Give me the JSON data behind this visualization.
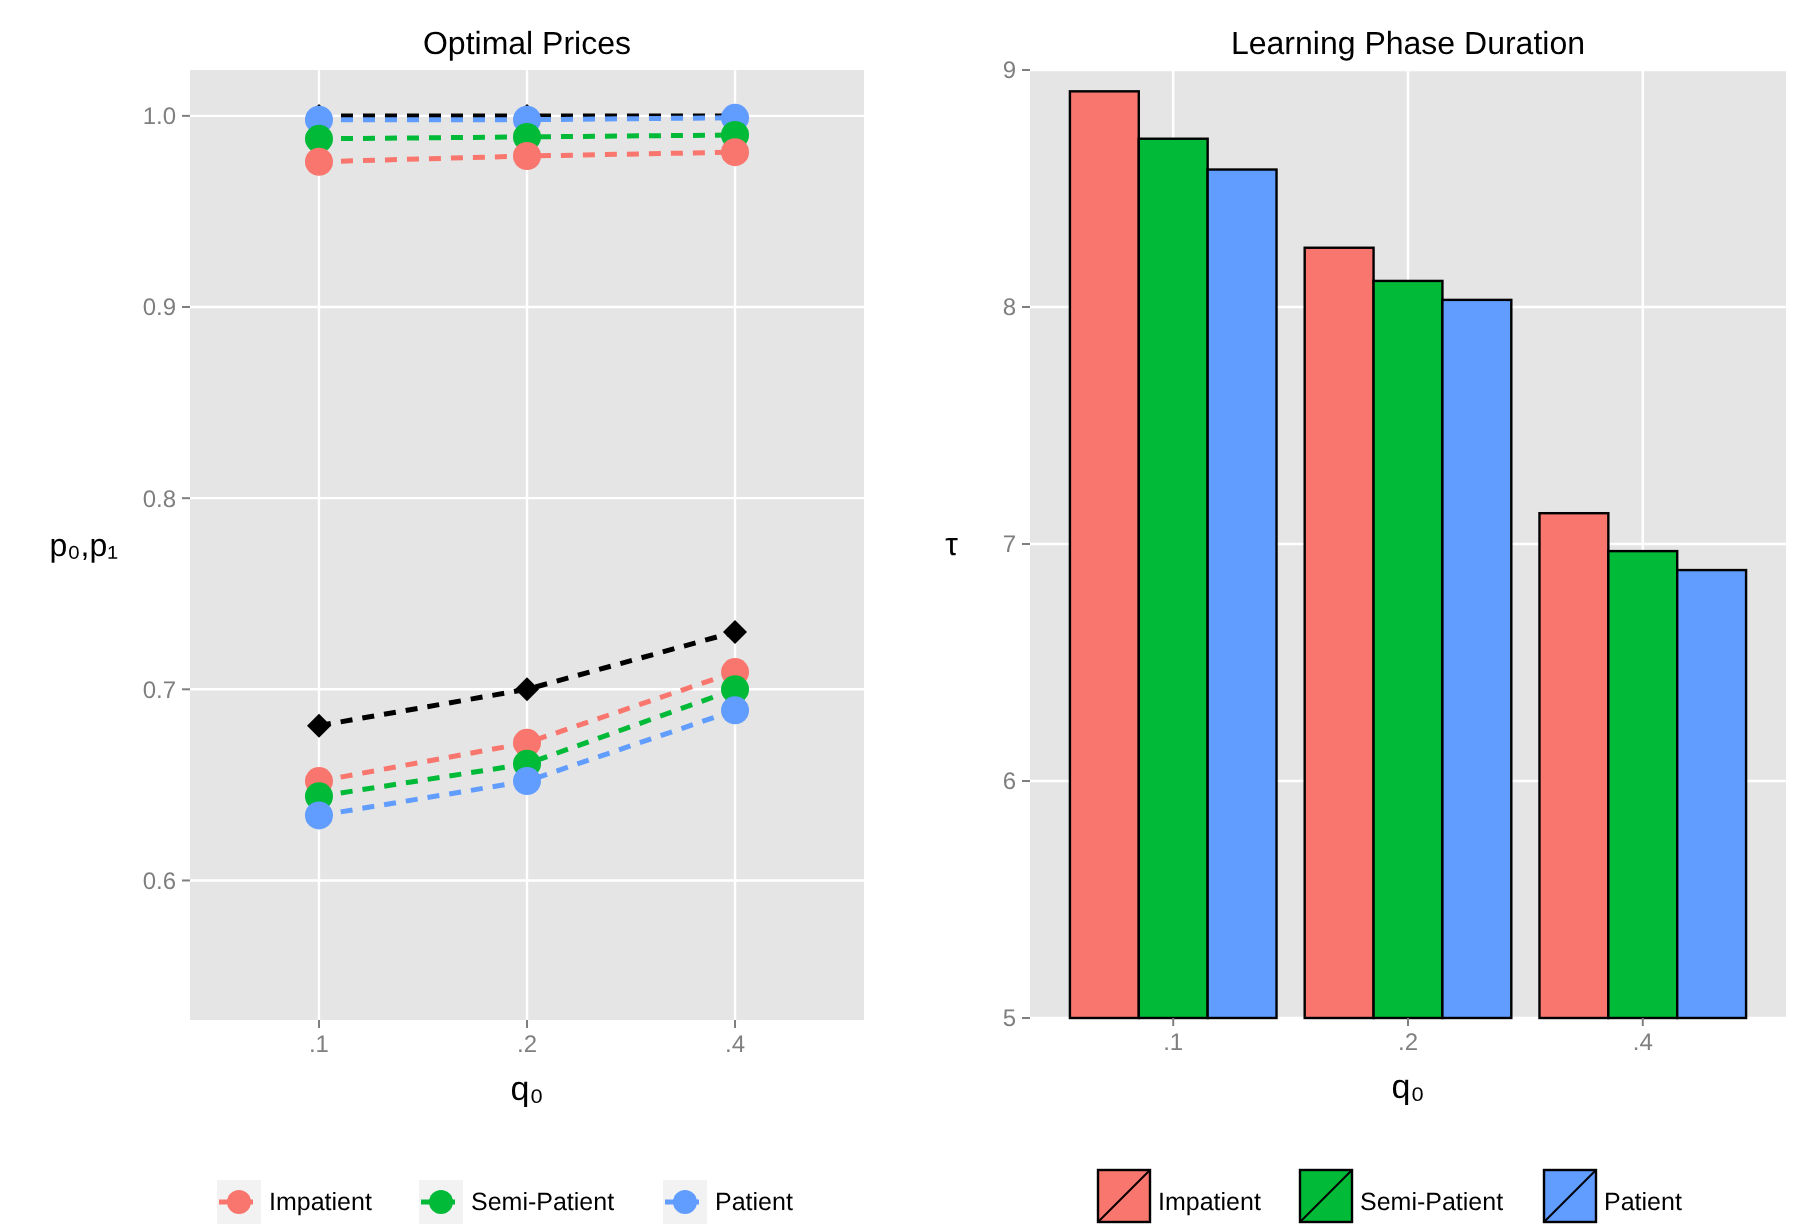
{
  "chart_data": [
    {
      "type": "line",
      "title": "Optimal Prices",
      "xlabel": "q₀",
      "ylabel": "p₀,p₁",
      "categories": [
        ".1",
        ".2",
        ".4"
      ],
      "ylim": [
        0.527,
        1.024
      ],
      "yticks": [
        {
          "value": 0.6,
          "label": "0.6"
        },
        {
          "value": 0.7,
          "label": "0.7"
        },
        {
          "value": 0.8,
          "label": "0.8"
        },
        {
          "value": 0.9,
          "label": "0.9"
        },
        {
          "value": 1.0,
          "label": "1.0"
        }
      ],
      "grid": true,
      "legend": "bottom",
      "line_style": "dashed",
      "marker": "circle",
      "series": [
        {
          "color": "#000000",
          "marker": "diamond",
          "values": [
            1.0,
            1.0,
            1.0
          ]
        },
        {
          "color": "#619cff",
          "values": [
            0.998,
            0.998,
            0.999
          ]
        },
        {
          "color": "#00ba38",
          "values": [
            0.988,
            0.989,
            0.99
          ]
        },
        {
          "color": "#f8766d",
          "values": [
            0.976,
            0.979,
            0.981
          ]
        },
        {
          "color": "#000000",
          "marker": "diamond",
          "values": [
            0.681,
            0.7,
            0.73
          ]
        },
        {
          "name": "Impatient",
          "color": "#f8766d",
          "values": [
            0.652,
            0.672,
            0.709
          ]
        },
        {
          "name": "Semi-Patient",
          "color": "#00ba38",
          "values": [
            0.644,
            0.661,
            0.7
          ]
        },
        {
          "name": "Patient",
          "color": "#619cff",
          "values": [
            0.634,
            0.652,
            0.689
          ]
        }
      ]
    },
    {
      "type": "bar",
      "title": "Learning Phase Duration",
      "xlabel": "q₀",
      "ylabel": "τ",
      "categories": [
        ".1",
        ".2",
        ".4"
      ],
      "ylim": [
        5,
        9
      ],
      "yticks": [
        5,
        6,
        7,
        8,
        9
      ],
      "grid": true,
      "legend": "bottom",
      "series": [
        {
          "name": "Impatient",
          "color": "#f8766d",
          "values": [
            8.91,
            8.25,
            7.13
          ]
        },
        {
          "name": "Semi-Patient",
          "color": "#00ba38",
          "values": [
            8.71,
            8.11,
            6.97
          ]
        },
        {
          "name": "Patient",
          "color": "#619cff",
          "values": [
            8.58,
            8.03,
            6.89
          ]
        }
      ]
    }
  ]
}
